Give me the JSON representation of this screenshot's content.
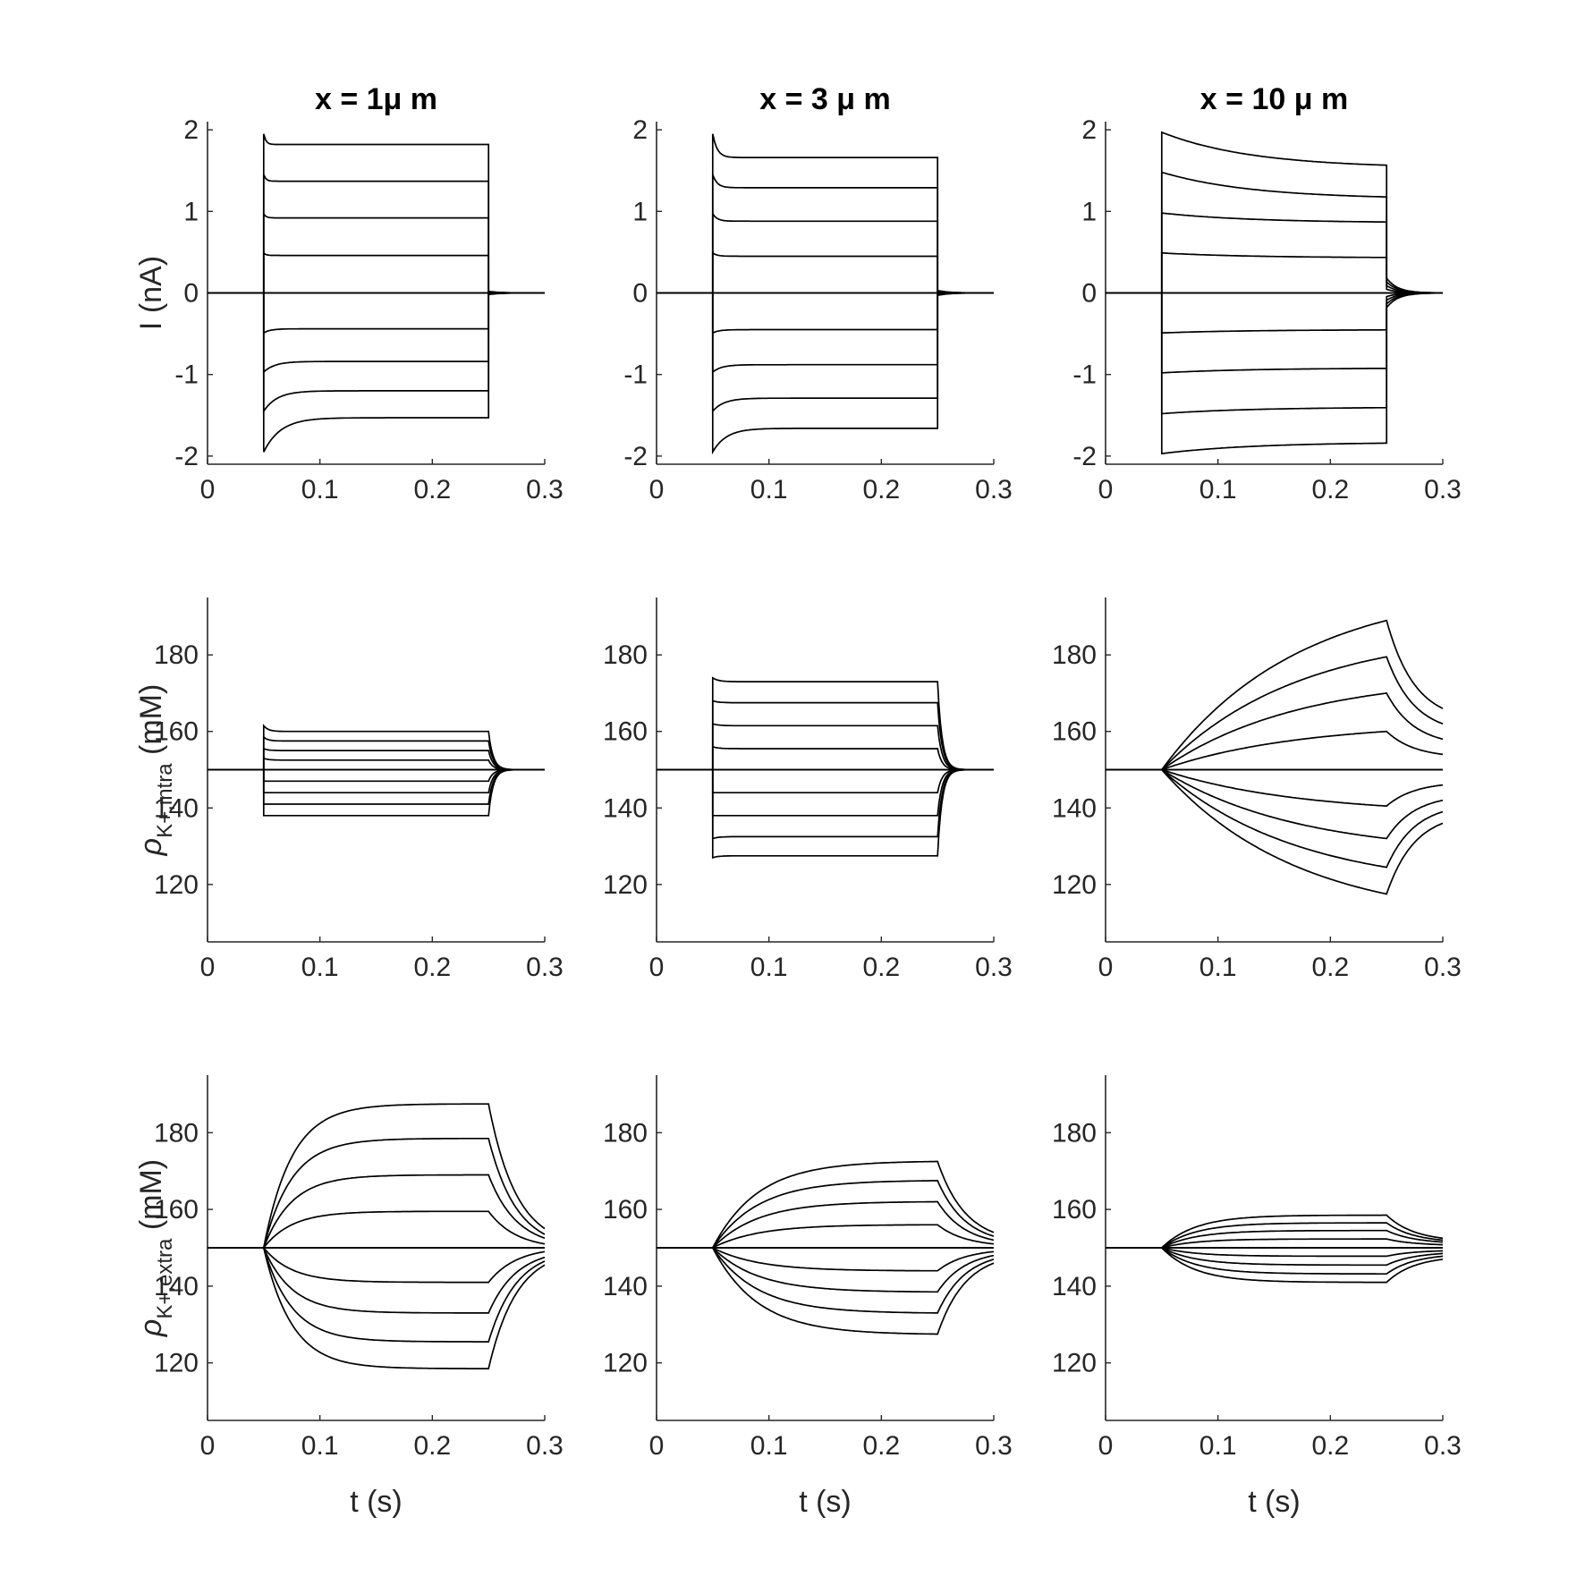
{
  "colors": {
    "trace": "#000000",
    "axis": "#262626",
    "background": "#ffffff"
  },
  "titles": [
    "x = 1μ m",
    "x = 3 μ m",
    "x = 10 μ m"
  ],
  "rows": [
    {
      "ylabel": "I (nA)",
      "ylabel_parts": null
    },
    {
      "ylabel": "",
      "ylabel_parts": {
        "symbol": "ρ",
        "sub": "K+,intra",
        "unit": " (mM)"
      }
    },
    {
      "ylabel": "",
      "ylabel_parts": {
        "symbol": "ρ",
        "sub": "K+,extra",
        "unit": " (mM)"
      }
    }
  ],
  "xlabel": "t (s)",
  "chart_data": [
    {
      "type": "line",
      "row": 0,
      "col": 0,
      "title": "x = 1μ m",
      "xlabel": "",
      "ylabel": "I (nA)",
      "xlim": [
        0,
        0.3
      ],
      "ylim": [
        -2.1,
        2.1
      ],
      "xticks": [
        0,
        0.1,
        0.2,
        0.3
      ],
      "yticks": [
        -2,
        -1,
        0,
        1,
        2
      ],
      "x_event": [
        0.05,
        0.25
      ],
      "series": [
        {
          "values_start": 1.95,
          "values_plateau": 1.82,
          "tau": 0.002,
          "tail": 0.02
        },
        {
          "values_start": 1.45,
          "values_plateau": 1.37,
          "tau": 0.002,
          "tail": 0.015
        },
        {
          "values_start": 0.97,
          "values_plateau": 0.92,
          "tau": 0.002,
          "tail": 0.01
        },
        {
          "values_start": 0.49,
          "values_plateau": 0.46,
          "tau": 0.002,
          "tail": 0.005
        },
        {
          "values_start": 0,
          "values_plateau": 0,
          "tau": 0.002,
          "tail": 0
        },
        {
          "values_start": -0.49,
          "values_plateau": -0.44,
          "tau": 0.006,
          "tail": -0.005
        },
        {
          "values_start": -0.97,
          "values_plateau": -0.84,
          "tau": 0.01,
          "tail": -0.01
        },
        {
          "values_start": -1.45,
          "values_plateau": -1.2,
          "tau": 0.012,
          "tail": -0.015
        },
        {
          "values_start": -1.95,
          "values_plateau": -1.53,
          "tau": 0.015,
          "tail": -0.02
        }
      ]
    },
    {
      "type": "line",
      "row": 0,
      "col": 1,
      "title": "x = 3 μ m",
      "xlabel": "",
      "ylabel": "",
      "xlim": [
        0,
        0.3
      ],
      "ylim": [
        -2.1,
        2.1
      ],
      "xticks": [
        0,
        0.1,
        0.2,
        0.3
      ],
      "yticks": [
        -2,
        -1,
        0,
        1,
        2
      ],
      "x_event": [
        0.05,
        0.25
      ],
      "series": [
        {
          "values_start": 1.95,
          "values_plateau": 1.66,
          "tau": 0.004,
          "tail": 0.03
        },
        {
          "values_start": 1.45,
          "values_plateau": 1.29,
          "tau": 0.004,
          "tail": 0.022
        },
        {
          "values_start": 0.97,
          "values_plateau": 0.88,
          "tau": 0.004,
          "tail": 0.015
        },
        {
          "values_start": 0.49,
          "values_plateau": 0.45,
          "tau": 0.004,
          "tail": 0.008
        },
        {
          "values_start": 0,
          "values_plateau": 0,
          "tau": 0.004,
          "tail": 0
        },
        {
          "values_start": -0.49,
          "values_plateau": -0.45,
          "tau": 0.006,
          "tail": -0.008
        },
        {
          "values_start": -0.97,
          "values_plateau": -0.88,
          "tau": 0.008,
          "tail": -0.015
        },
        {
          "values_start": -1.45,
          "values_plateau": -1.29,
          "tau": 0.01,
          "tail": -0.022
        },
        {
          "values_start": -1.95,
          "values_plateau": -1.66,
          "tau": 0.012,
          "tail": -0.03
        }
      ]
    },
    {
      "type": "line",
      "row": 0,
      "col": 2,
      "title": "x = 10 μ m",
      "xlabel": "",
      "ylabel": "",
      "xlim": [
        0,
        0.3
      ],
      "ylim": [
        -2.1,
        2.1
      ],
      "xticks": [
        0,
        0.1,
        0.2,
        0.3
      ],
      "yticks": [
        -2,
        -1,
        0,
        1,
        2
      ],
      "x_event": [
        0.05,
        0.25
      ],
      "series": [
        {
          "values_start": 1.97,
          "values_plateau": 1.53,
          "tau": 0.08,
          "tail": 0.18
        },
        {
          "values_start": 1.48,
          "values_plateau": 1.15,
          "tau": 0.08,
          "tail": 0.135
        },
        {
          "values_start": 0.98,
          "values_plateau": 0.86,
          "tau": 0.08,
          "tail": 0.09
        },
        {
          "values_start": 0.49,
          "values_plateau": 0.43,
          "tau": 0.08,
          "tail": 0.045
        },
        {
          "values_start": 0,
          "values_plateau": 0,
          "tau": 0.08,
          "tail": 0
        },
        {
          "values_start": -0.49,
          "values_plateau": -0.45,
          "tau": 0.08,
          "tail": -0.045
        },
        {
          "values_start": -0.98,
          "values_plateau": -0.92,
          "tau": 0.08,
          "tail": -0.09
        },
        {
          "values_start": -1.48,
          "values_plateau": -1.4,
          "tau": 0.08,
          "tail": -0.135
        },
        {
          "values_start": -1.97,
          "values_plateau": -1.83,
          "tau": 0.08,
          "tail": -0.18
        }
      ]
    },
    {
      "type": "line",
      "row": 1,
      "col": 0,
      "title": "",
      "xlabel": "",
      "ylabel": "ρK+,intra (mM)",
      "xlim": [
        0,
        0.3
      ],
      "ylim": [
        105,
        195
      ],
      "xticks": [
        0,
        0.1,
        0.2,
        0.3
      ],
      "yticks": [
        120,
        140,
        160,
        180
      ],
      "x_event": [
        0.05,
        0.25
      ],
      "series": [
        {
          "values_start": 161.5,
          "values_plateau": 160,
          "tau": 0.004
        },
        {
          "values_start": 158.5,
          "values_plateau": 157.5,
          "tau": 0.004
        },
        {
          "values_start": 155.5,
          "values_plateau": 155,
          "tau": 0.004
        },
        {
          "values_start": 153,
          "values_plateau": 152.5,
          "tau": 0.004
        },
        {
          "values_start": 150,
          "values_plateau": 150,
          "tau": 0.004
        },
        {
          "values_start": 147,
          "values_plateau": 147,
          "tau": 0.004
        },
        {
          "values_start": 144,
          "values_plateau": 144,
          "tau": 0.004
        },
        {
          "values_start": 141,
          "values_plateau": 141,
          "tau": 0.004
        },
        {
          "values_start": 138,
          "values_plateau": 138,
          "tau": 0.004
        }
      ]
    },
    {
      "type": "line",
      "row": 1,
      "col": 1,
      "title": "",
      "xlabel": "",
      "ylabel": "",
      "xlim": [
        0,
        0.3
      ],
      "ylim": [
        105,
        195
      ],
      "xticks": [
        0,
        0.1,
        0.2,
        0.3
      ],
      "yticks": [
        120,
        140,
        160,
        180
      ],
      "x_event": [
        0.05,
        0.25
      ],
      "series": [
        {
          "values_start": 174,
          "values_plateau": 173,
          "tau": 0.005
        },
        {
          "values_start": 168,
          "values_plateau": 167.5,
          "tau": 0.005
        },
        {
          "values_start": 162,
          "values_plateau": 161.5,
          "tau": 0.005
        },
        {
          "values_start": 156,
          "values_plateau": 155.5,
          "tau": 0.005
        },
        {
          "values_start": 150,
          "values_plateau": 150,
          "tau": 0.005
        },
        {
          "values_start": 144,
          "values_plateau": 144,
          "tau": 0.005
        },
        {
          "values_start": 138,
          "values_plateau": 138,
          "tau": 0.005
        },
        {
          "values_start": 132,
          "values_plateau": 132.5,
          "tau": 0.005
        },
        {
          "values_start": 127,
          "values_plateau": 127.5,
          "tau": 0.005
        }
      ]
    },
    {
      "type": "line",
      "row": 1,
      "col": 2,
      "title": "",
      "xlabel": "",
      "ylabel": "",
      "xlim": [
        0,
        0.3
      ],
      "ylim": [
        105,
        195
      ],
      "xticks": [
        0,
        0.1,
        0.2,
        0.3
      ],
      "yticks": [
        120,
        140,
        160,
        180
      ],
      "x_event": [
        0.05,
        0.25
      ],
      "series": [
        {
          "values_peak": 189,
          "values_end": 166,
          "tau": 0.12
        },
        {
          "values_peak": 179.5,
          "values_end": 162,
          "tau": 0.12
        },
        {
          "values_peak": 170,
          "values_end": 158,
          "tau": 0.12
        },
        {
          "values_peak": 160,
          "values_end": 154,
          "tau": 0.12
        },
        {
          "values_peak": 150,
          "values_end": 150,
          "tau": 0.12
        },
        {
          "values_peak": 140.5,
          "values_end": 146,
          "tau": 0.12
        },
        {
          "values_peak": 132,
          "values_end": 142,
          "tau": 0.12
        },
        {
          "values_peak": 124.5,
          "values_end": 139,
          "tau": 0.12
        },
        {
          "values_peak": 117.5,
          "values_end": 136,
          "tau": 0.12
        }
      ]
    },
    {
      "type": "line",
      "row": 2,
      "col": 0,
      "title": "",
      "xlabel": "t (s)",
      "ylabel": "ρK+,extra (mM)",
      "xlim": [
        0,
        0.3
      ],
      "ylim": [
        105,
        195
      ],
      "xticks": [
        0,
        0.1,
        0.2,
        0.3
      ],
      "yticks": [
        120,
        140,
        160,
        180
      ],
      "x_event": [
        0.05,
        0.25
      ],
      "series": [
        {
          "values_peak": 187.5,
          "values_end": 155,
          "tau": 0.025
        },
        {
          "values_peak": 178.5,
          "values_end": 153.5,
          "tau": 0.025
        },
        {
          "values_peak": 169,
          "values_end": 152.5,
          "tau": 0.025
        },
        {
          "values_peak": 159.5,
          "values_end": 151,
          "tau": 0.025
        },
        {
          "values_peak": 150,
          "values_end": 150,
          "tau": 0.025
        },
        {
          "values_peak": 141,
          "values_end": 149,
          "tau": 0.025
        },
        {
          "values_peak": 133,
          "values_end": 147.5,
          "tau": 0.025
        },
        {
          "values_peak": 125.5,
          "values_end": 146.5,
          "tau": 0.025
        },
        {
          "values_peak": 118.5,
          "values_end": 145.5,
          "tau": 0.025
        }
      ]
    },
    {
      "type": "line",
      "row": 2,
      "col": 1,
      "title": "",
      "xlabel": "t (s)",
      "ylabel": "",
      "xlim": [
        0,
        0.3
      ],
      "ylim": [
        105,
        195
      ],
      "xticks": [
        0,
        0.1,
        0.2,
        0.3
      ],
      "yticks": [
        120,
        140,
        160,
        180
      ],
      "x_event": [
        0.05,
        0.25
      ],
      "series": [
        {
          "values_peak": 172.5,
          "values_end": 154,
          "tau": 0.04
        },
        {
          "values_peak": 167.5,
          "values_end": 153,
          "tau": 0.04
        },
        {
          "values_peak": 162,
          "values_end": 152,
          "tau": 0.04
        },
        {
          "values_peak": 156,
          "values_end": 151,
          "tau": 0.04
        },
        {
          "values_peak": 150,
          "values_end": 150,
          "tau": 0.04
        },
        {
          "values_peak": 144,
          "values_end": 149,
          "tau": 0.04
        },
        {
          "values_peak": 138.5,
          "values_end": 148,
          "tau": 0.04
        },
        {
          "values_peak": 133,
          "values_end": 147,
          "tau": 0.04
        },
        {
          "values_peak": 127.5,
          "values_end": 146,
          "tau": 0.04
        }
      ]
    },
    {
      "type": "line",
      "row": 2,
      "col": 2,
      "title": "",
      "xlabel": "t (s)",
      "ylabel": "",
      "xlim": [
        0,
        0.3
      ],
      "ylim": [
        105,
        195
      ],
      "xticks": [
        0,
        0.1,
        0.2,
        0.3
      ],
      "yticks": [
        120,
        140,
        160,
        180
      ],
      "x_event": [
        0.05,
        0.25
      ],
      "series": [
        {
          "values_peak": 158.5,
          "values_end": 152.5,
          "tau": 0.03
        },
        {
          "values_peak": 156.5,
          "values_end": 152,
          "tau": 0.03
        },
        {
          "values_peak": 154.5,
          "values_end": 151.5,
          "tau": 0.03
        },
        {
          "values_peak": 152.3,
          "values_end": 150.8,
          "tau": 0.03
        },
        {
          "values_peak": 150,
          "values_end": 150,
          "tau": 0.03
        },
        {
          "values_peak": 147.8,
          "values_end": 149.2,
          "tau": 0.03
        },
        {
          "values_peak": 145.5,
          "values_end": 148.5,
          "tau": 0.03
        },
        {
          "values_peak": 143.2,
          "values_end": 147.8,
          "tau": 0.03
        },
        {
          "values_peak": 141,
          "values_end": 147,
          "tau": 0.03
        }
      ]
    }
  ]
}
